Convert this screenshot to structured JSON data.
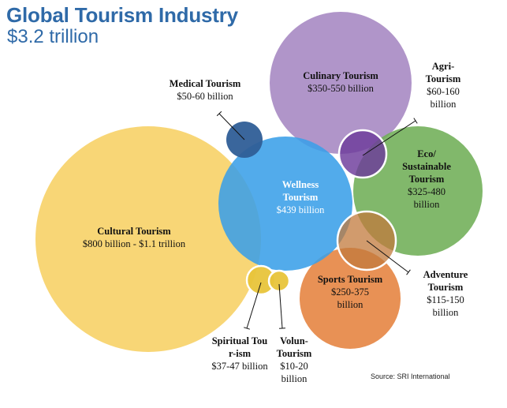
{
  "header": {
    "title": "Global Tourism Industry",
    "subtitle": "$3.2 trillion"
  },
  "source": "Source: SRI International",
  "bubbles": [
    {
      "name": "Cultural Tourism",
      "value": "$800 billion - $1.1 trillion",
      "color": "#f7d26a"
    },
    {
      "name": "Culinary Tourism",
      "value": "$350-550 billion",
      "color": "#a98cc4"
    },
    {
      "name": "Wellness Tourism",
      "value": "$439 billion",
      "color": "#3a9fe8"
    },
    {
      "name": "Eco/ Sustainable Tourism",
      "value": "$325-480 billion",
      "color": "#6fae57"
    },
    {
      "name": "Sports Tourism",
      "value": "$250-375 billion",
      "color": "#e5823e"
    },
    {
      "name": "Medical Tourism",
      "value": "$50-60 billion",
      "color": "#2f5e97"
    },
    {
      "name": "Agri-Tourism",
      "value": "$60-160 billion",
      "color": "#6c3b9b"
    },
    {
      "name": "Adventure Tourism",
      "value": "$115-150 billion",
      "color": "#c2793c"
    },
    {
      "name": "Spiritual Tour-ism",
      "value": "$37-47 billion",
      "color": "#e8c43a"
    },
    {
      "name": "Volun-Tourism",
      "value": "$10-20 billion",
      "color": "#e8c43a"
    }
  ]
}
